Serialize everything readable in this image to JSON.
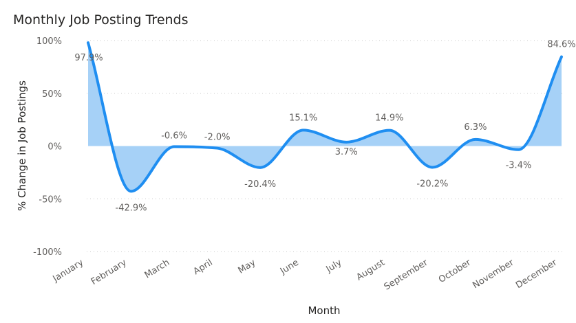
{
  "chart_data": {
    "type": "area",
    "title": "Monthly Job Posting Trends",
    "xlabel": "Month",
    "ylabel": "% Change in Job Postings",
    "categories": [
      "January",
      "February",
      "March",
      "April",
      "May",
      "June",
      "July",
      "August",
      "September",
      "October",
      "November",
      "December"
    ],
    "series": [
      {
        "values": [
          97.9,
          -42.9,
          -0.6,
          -2.0,
          -20.4,
          15.1,
          3.7,
          14.9,
          -20.2,
          6.3,
          -3.4,
          84.6
        ],
        "labels": [
          "97.9%",
          "-42.9%",
          "-0.6%",
          "-2.0%",
          "-20.4%",
          "15.1%",
          "3.7%",
          "14.9%",
          "-20.2%",
          "6.3%",
          "-3.4%",
          "84.6%"
        ]
      }
    ],
    "ylim": [
      -100,
      100
    ],
    "yticks": [
      100,
      50,
      0,
      -50,
      -100
    ],
    "ytick_labels": [
      "100%",
      "50%",
      "0%",
      "-50%",
      "-100%"
    ],
    "grid": true,
    "colors": {
      "line": "#1f8ef1",
      "fill": "#a6d1f7",
      "grid": "#c8c8c8"
    }
  }
}
